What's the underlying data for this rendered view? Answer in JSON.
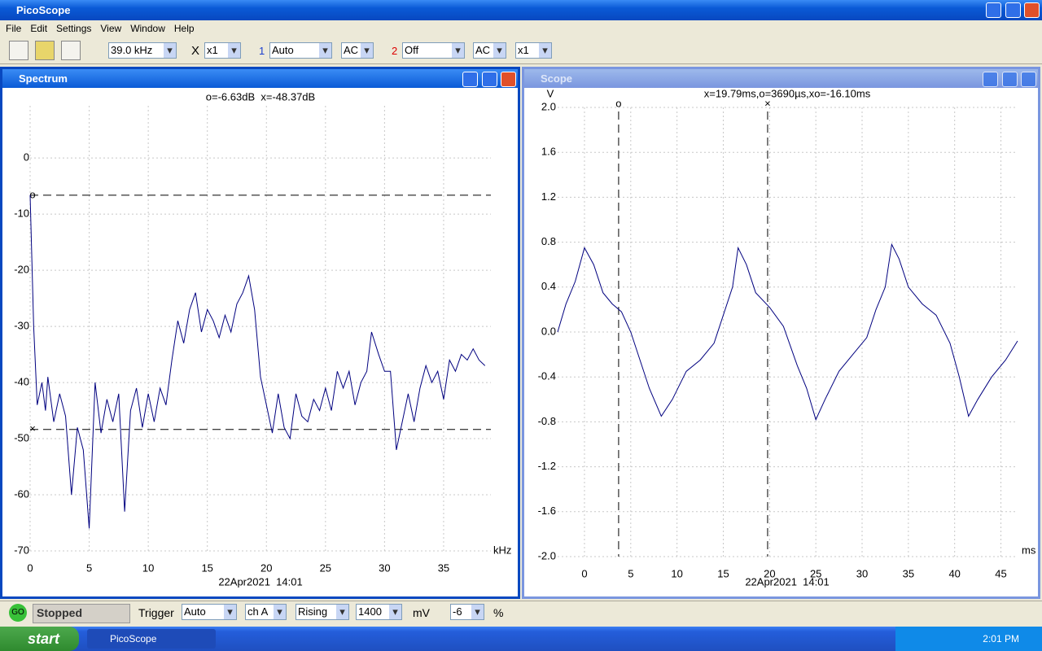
{
  "window": {
    "title": "PicoScope"
  },
  "menu": [
    "File",
    "Edit",
    "Settings",
    "View",
    "Window",
    "Help"
  ],
  "toolbar": {
    "timebase": "39.0 kHz",
    "x_mult_label": "X",
    "x_mult": "x1",
    "ch1_label": "1",
    "ch1_range": "Auto",
    "ch1_coupling": "AC",
    "ch2_label": "2",
    "ch2_range": "Off",
    "ch2_coupling": "AC",
    "ch2_mult": "x1"
  },
  "panels": [
    {
      "title": "Spectrum"
    },
    {
      "title": "Scope"
    }
  ],
  "chart_data": [
    {
      "type": "line",
      "title": "o=-6.63dB  x=-48.37dB",
      "xlabel": "kHz",
      "footer": "22Apr2021  14:01",
      "xlim": [
        0,
        39
      ],
      "ylim": [
        -70,
        9.3
      ],
      "xticks": [
        0,
        5,
        10,
        15,
        20,
        25,
        30,
        35
      ],
      "yticks": [
        0,
        -10,
        -20,
        -30,
        -40,
        -50,
        -60,
        -70
      ],
      "grid": true,
      "cursors": [
        {
          "label": "o",
          "axis": "y",
          "value": -6.63
        },
        {
          "label": "×",
          "axis": "y",
          "value": -48.37
        }
      ],
      "x": [
        0,
        0.3,
        0.6,
        1.0,
        1.3,
        1.5,
        2.0,
        2.5,
        3.0,
        3.5,
        4.0,
        4.5,
        5.0,
        5.5,
        6.0,
        6.5,
        7.0,
        7.5,
        8.0,
        8.5,
        9.0,
        9.5,
        10.0,
        10.5,
        11.0,
        11.5,
        12.0,
        12.5,
        13.0,
        13.5,
        14.0,
        14.5,
        15.0,
        15.5,
        16.0,
        16.5,
        17.0,
        17.5,
        18.0,
        18.5,
        19.0,
        19.5,
        20.0,
        20.5,
        21.0,
        21.5,
        22.0,
        22.5,
        23.0,
        23.5,
        24.0,
        24.5,
        25.0,
        25.5,
        26.0,
        26.5,
        27.0,
        27.5,
        28.0,
        28.5,
        28.9,
        29.5,
        30.0,
        30.5,
        31.0,
        31.5,
        32.0,
        32.5,
        33.0,
        33.5,
        34.0,
        34.5,
        35.0,
        35.5,
        36.0,
        36.5,
        37.0,
        37.5,
        38.0,
        38.5
      ],
      "series": [
        {
          "name": "Spectrum",
          "color": "#00007f",
          "values": [
            -6.6,
            -30,
            -44,
            -40,
            -45,
            -39,
            -47,
            -42,
            -46,
            -60,
            -48,
            -52,
            -66,
            -40,
            -49,
            -43,
            -47,
            -42,
            -63,
            -45,
            -41,
            -48,
            -42,
            -47,
            -41,
            -44,
            -36,
            -29,
            -33,
            -27,
            -24,
            -31,
            -27,
            -29,
            -32,
            -28,
            -31,
            -26,
            -24,
            -21,
            -27,
            -39,
            -44,
            -49,
            -42,
            -48,
            -50,
            -42,
            -46,
            -47,
            -43,
            -45,
            -41,
            -45,
            -38,
            -41,
            -38,
            -44,
            -40,
            -38,
            -31,
            -35,
            -38,
            -38,
            -52,
            -47,
            -42,
            -47,
            -41,
            -37,
            -40,
            -38,
            -43,
            -36,
            -38,
            -35,
            -36,
            -34,
            -36,
            -37
          ]
        }
      ]
    },
    {
      "type": "line",
      "title": "x=19.79ms,o=3690µs,xo=-16.10ms",
      "xlabel": "ms",
      "ylabel": "V",
      "footer": "22Apr2021  14:01",
      "xlim": [
        -2.9,
        46.8
      ],
      "ylim": [
        -2,
        2
      ],
      "xticks": [
        0,
        5,
        10,
        15,
        20,
        25,
        30,
        35,
        40,
        45
      ],
      "yticks": [
        {
          "value": 2,
          "label": "2.0"
        },
        1.6,
        1.2,
        0.8,
        0.4,
        {
          "value": 0,
          "label": "0.0"
        },
        -0.4,
        -0.8,
        -1.2,
        -1.6,
        {
          "value": -2,
          "label": "-2.0"
        }
      ],
      "grid": true,
      "cursors": [
        {
          "label": "o",
          "axis": "x",
          "value": 3.69
        },
        {
          "label": "×",
          "axis": "x",
          "value": 19.79
        }
      ],
      "x": [
        -2.9,
        -2,
        -1,
        0,
        1,
        2,
        3,
        4,
        5,
        6,
        7,
        8.3,
        9.5,
        11,
        12.5,
        14,
        15,
        16,
        16.6,
        17.5,
        18.5,
        20,
        21.5,
        23,
        24,
        25,
        26,
        27.5,
        29,
        30.5,
        31.5,
        32.5,
        33.2,
        34,
        35,
        36.5,
        38,
        39.5,
        40.5,
        41.5,
        42.5,
        44,
        45.5,
        46.8
      ],
      "series": [
        {
          "name": "Scope",
          "color": "#00007f",
          "values": [
            0.0,
            0.25,
            0.45,
            0.75,
            0.6,
            0.35,
            0.25,
            0.18,
            0.0,
            -0.25,
            -0.5,
            -0.75,
            -0.6,
            -0.35,
            -0.25,
            -0.1,
            0.15,
            0.4,
            0.75,
            0.6,
            0.35,
            0.22,
            0.05,
            -0.3,
            -0.5,
            -0.78,
            -0.6,
            -0.35,
            -0.2,
            -0.05,
            0.2,
            0.4,
            0.78,
            0.65,
            0.4,
            0.25,
            0.15,
            -0.1,
            -0.4,
            -0.75,
            -0.6,
            -0.4,
            -0.25,
            -0.08
          ]
        }
      ]
    }
  ],
  "statusbar": {
    "go": "GO",
    "state": "Stopped",
    "trigger_label": "Trigger",
    "trigger_mode": "Auto",
    "trigger_channel": "ch A",
    "trigger_edge": "Rising",
    "threshold": "1400",
    "threshold_unit": "mV",
    "delay": "-6",
    "delay_unit": "%"
  },
  "taskbar": {
    "start": "start",
    "app": "PicoScope",
    "clock": "2:01 PM"
  }
}
